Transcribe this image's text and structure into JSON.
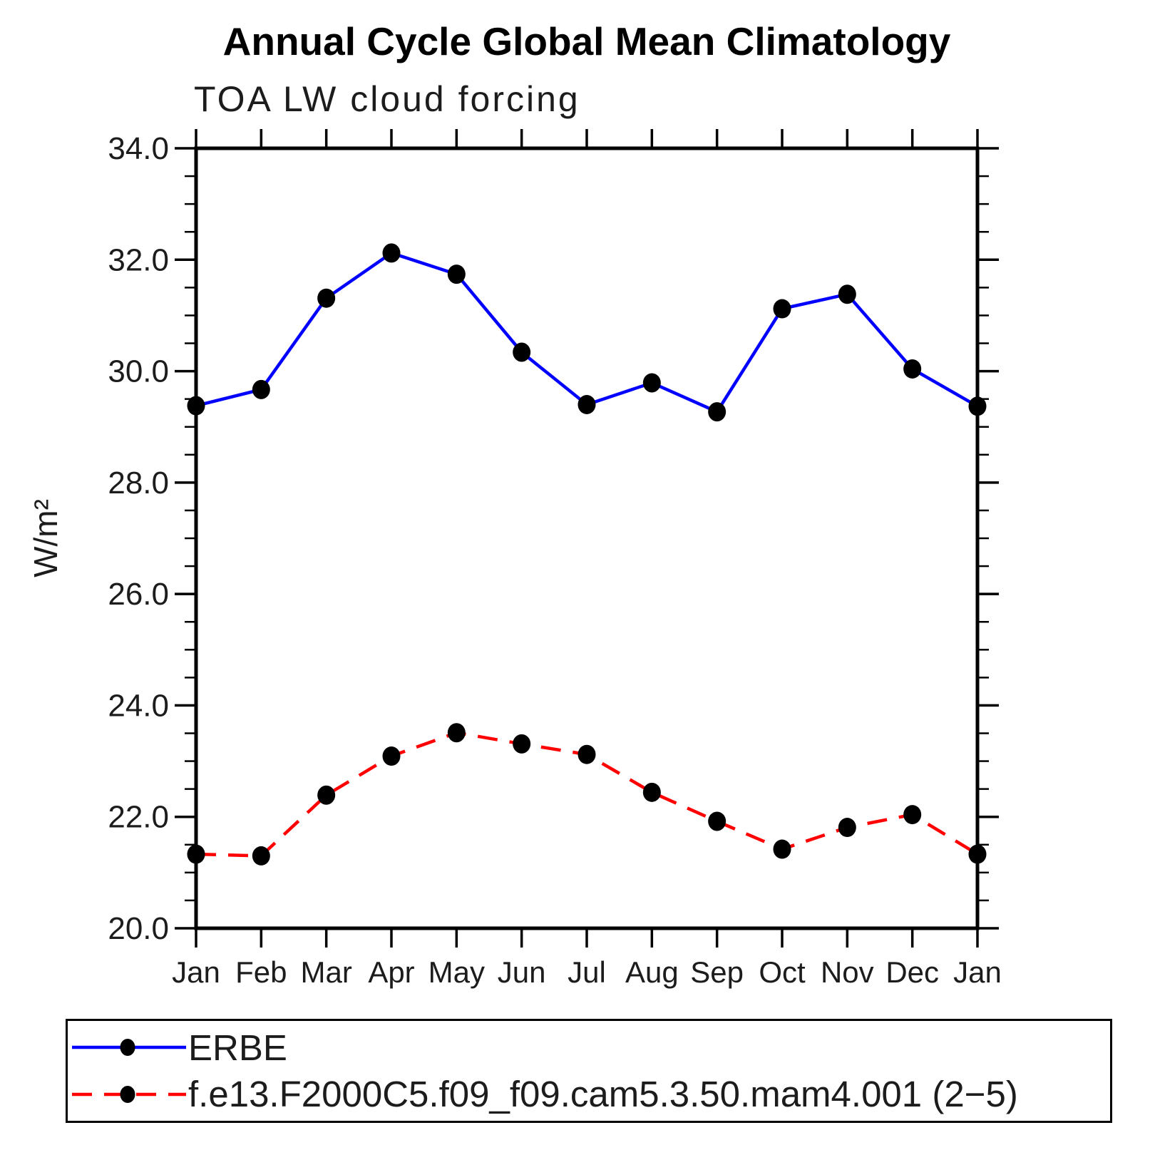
{
  "title": "Annual Cycle Global Mean Climatology",
  "subtitle": "TOA LW cloud forcing",
  "chart_data": {
    "type": "line",
    "x_categories": [
      "Jan",
      "Feb",
      "Mar",
      "Apr",
      "May",
      "Jun",
      "Jul",
      "Aug",
      "Sep",
      "Oct",
      "Nov",
      "Dec",
      "Jan"
    ],
    "xlabel": "",
    "ylabel": "W/m²",
    "ylim": [
      20.0,
      34.0
    ],
    "y_major_ticks": [
      20.0,
      22.0,
      24.0,
      26.0,
      28.0,
      30.0,
      32.0,
      34.0
    ],
    "y_tick_labels": [
      "20.0",
      "22.0",
      "24.0",
      "26.0",
      "28.0",
      "30.0",
      "32.0",
      "34.0"
    ],
    "y_minor_step": 0.5,
    "grid": false,
    "legend_position": "bottom-box",
    "frame_color": "#000000",
    "marker_color": "#000000",
    "series": [
      {
        "name": "ERBE",
        "color": "#0000ff",
        "style": "solid",
        "marker": "filled-circle",
        "values": [
          29.38,
          29.67,
          31.31,
          32.12,
          31.74,
          30.34,
          29.4,
          29.79,
          29.27,
          31.12,
          31.38,
          30.04,
          29.37
        ]
      },
      {
        "name": "f.e13.F2000C5.f09_f09.cam5.3.50.mam4.001 (2−5)",
        "color": "#ff0000",
        "style": "dashed",
        "marker": "filled-circle",
        "values": [
          21.33,
          21.3,
          22.39,
          23.09,
          23.51,
          23.31,
          23.12,
          22.44,
          21.92,
          21.42,
          21.81,
          22.04,
          21.33
        ]
      }
    ]
  }
}
